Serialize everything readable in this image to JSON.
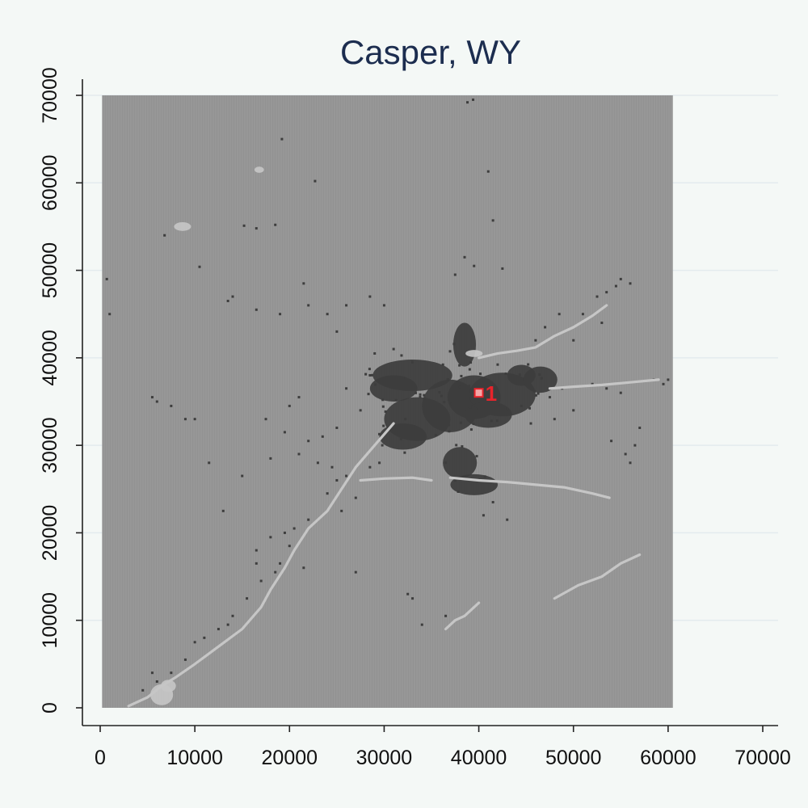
{
  "chart_data": {
    "type": "scatter",
    "title": "Casper, WY",
    "xlabel": "",
    "ylabel": "",
    "xlim": [
      0,
      72000
    ],
    "ylim": [
      0,
      70000
    ],
    "x_ticks": [
      0,
      10000,
      20000,
      30000,
      40000,
      50000,
      60000,
      70000
    ],
    "y_ticks": [
      0,
      10000,
      20000,
      30000,
      40000,
      50000,
      60000,
      70000
    ],
    "x_tick_labels": [
      "0",
      "10000",
      "20000",
      "30000",
      "40000",
      "50000",
      "60000",
      "70000"
    ],
    "y_tick_labels": [
      "0",
      "10000",
      "20000",
      "30000",
      "40000",
      "50000",
      "60000",
      "70000"
    ],
    "grid": "horizontal",
    "raster_extent": {
      "x": [
        200,
        60500
      ],
      "y": [
        0,
        70000
      ]
    },
    "colors": {
      "background": "#f4f8f6",
      "raster_fill": "#979797",
      "developed": "#3d3d3d",
      "water_roads": "#c6c6c6",
      "marker": "#e8242b",
      "marker_fill": "#f4a7a7",
      "title": "#1c2d4f",
      "grid": "#e3ebee"
    },
    "series": [
      {
        "class": "developed-core",
        "color": "#3d3d3d",
        "blobs": [
          [
            33000,
            38000,
            4200,
            1800
          ],
          [
            31000,
            36500,
            2500,
            1500
          ],
          [
            33500,
            33000,
            3500,
            2500
          ],
          [
            32000,
            31000,
            2500,
            1500
          ],
          [
            37000,
            34500,
            3000,
            3000
          ],
          [
            39500,
            35500,
            2800,
            2500
          ],
          [
            42500,
            35800,
            3500,
            2500
          ],
          [
            41000,
            33500,
            2500,
            1500
          ],
          [
            38500,
            41500,
            1200,
            2500
          ],
          [
            38000,
            28000,
            1800,
            1800
          ],
          [
            39500,
            25500,
            2500,
            1200
          ],
          [
            44500,
            38000,
            1500,
            1200
          ],
          [
            46500,
            37500,
            1800,
            1500
          ]
        ]
      },
      {
        "class": "developed-scatter",
        "color": "#3d3d3d",
        "points": [
          [
            38800,
            69200
          ],
          [
            39400,
            69500
          ],
          [
            41000,
            61300
          ],
          [
            19200,
            65000
          ],
          [
            22700,
            60200
          ],
          [
            15200,
            55100
          ],
          [
            16500,
            54800
          ],
          [
            18500,
            55200
          ],
          [
            41500,
            55700
          ],
          [
            6800,
            54000
          ],
          [
            10500,
            50400
          ],
          [
            700,
            49000
          ],
          [
            1000,
            45000
          ],
          [
            14000,
            47000
          ],
          [
            13500,
            46500
          ],
          [
            16500,
            45500
          ],
          [
            19000,
            45000
          ],
          [
            21500,
            48500
          ],
          [
            22000,
            46000
          ],
          [
            24000,
            45000
          ],
          [
            25000,
            43000
          ],
          [
            26000,
            46000
          ],
          [
            28500,
            47000
          ],
          [
            30000,
            46000
          ],
          [
            37500,
            49500
          ],
          [
            38500,
            51500
          ],
          [
            39500,
            50500
          ],
          [
            42500,
            50200
          ],
          [
            46000,
            42000
          ],
          [
            47000,
            43500
          ],
          [
            48500,
            45000
          ],
          [
            50000,
            42000
          ],
          [
            51000,
            45000
          ],
          [
            52500,
            47000
          ],
          [
            53500,
            47500
          ],
          [
            55000,
            49000
          ],
          [
            54500,
            48200
          ],
          [
            56000,
            48500
          ],
          [
            53000,
            44000
          ],
          [
            58500,
            37500
          ],
          [
            59500,
            37000
          ],
          [
            60000,
            37500
          ],
          [
            55000,
            36000
          ],
          [
            53500,
            36500
          ],
          [
            52000,
            37000
          ],
          [
            5500,
            35500
          ],
          [
            6000,
            35000
          ],
          [
            7500,
            34500
          ],
          [
            9000,
            33000
          ],
          [
            10000,
            33000
          ],
          [
            17500,
            33000
          ],
          [
            19500,
            31500
          ],
          [
            18000,
            28500
          ],
          [
            21000,
            29000
          ],
          [
            22000,
            30500
          ],
          [
            23000,
            28000
          ],
          [
            24500,
            27500
          ],
          [
            25000,
            26000
          ],
          [
            24000,
            24500
          ],
          [
            26000,
            26500
          ],
          [
            25500,
            22500
          ],
          [
            22000,
            21500
          ],
          [
            20500,
            20500
          ],
          [
            19500,
            20000
          ],
          [
            18000,
            19500
          ],
          [
            16500,
            18000
          ],
          [
            17000,
            14500
          ],
          [
            18500,
            15500
          ],
          [
            19000,
            16500
          ],
          [
            15500,
            12500
          ],
          [
            14000,
            10500
          ],
          [
            13500,
            9500
          ],
          [
            12500,
            9000
          ],
          [
            11000,
            8000
          ],
          [
            10000,
            7500
          ],
          [
            9000,
            5500
          ],
          [
            7500,
            4000
          ],
          [
            6000,
            3000
          ],
          [
            4500,
            2000
          ],
          [
            5500,
            4000
          ],
          [
            33000,
            12500
          ],
          [
            32500,
            13000
          ],
          [
            34000,
            9500
          ],
          [
            36500,
            10500
          ],
          [
            41500,
            23500
          ],
          [
            40500,
            22000
          ],
          [
            43000,
            21500
          ],
          [
            44500,
            34500
          ],
          [
            48000,
            33000
          ],
          [
            50000,
            34000
          ],
          [
            57000,
            32000
          ],
          [
            55500,
            29000
          ],
          [
            56500,
            30000
          ],
          [
            56000,
            28000
          ],
          [
            54000,
            30500
          ],
          [
            28500,
            27500
          ],
          [
            27000,
            24000
          ],
          [
            29500,
            28000
          ],
          [
            36500,
            28000
          ],
          [
            37500,
            26000
          ],
          [
            20000,
            34500
          ],
          [
            21000,
            35500
          ],
          [
            23500,
            31000
          ],
          [
            25000,
            32000
          ],
          [
            26000,
            36500
          ],
          [
            27500,
            34000
          ],
          [
            28500,
            38000
          ],
          [
            29000,
            40500
          ],
          [
            31000,
            41000
          ],
          [
            33000,
            39500
          ],
          [
            45500,
            32500
          ],
          [
            47500,
            35500
          ],
          [
            48800,
            36500
          ],
          [
            11500,
            28000
          ],
          [
            15000,
            26500
          ],
          [
            13000,
            22500
          ],
          [
            27000,
            15500
          ],
          [
            21500,
            16000
          ],
          [
            20000,
            18500
          ],
          [
            16500,
            16500
          ]
        ]
      },
      {
        "class": "water-roads",
        "color": "#c6c6c6",
        "polylines": [
          [
            [
              27500,
              26000
            ],
            [
              30000,
              26200
            ],
            [
              33000,
              26300
            ],
            [
              35000,
              26000
            ]
          ],
          [
            [
              37000,
              26300
            ],
            [
              40000,
              26000
            ],
            [
              43000,
              25800
            ],
            [
              46000,
              25500
            ],
            [
              49000,
              25200
            ],
            [
              52000,
              24500
            ],
            [
              53800,
              24000
            ]
          ],
          [
            [
              3000,
              200
            ],
            [
              5000,
              1200
            ],
            [
              6500,
              2500
            ],
            [
              8000,
              3500
            ],
            [
              10000,
              5000
            ],
            [
              12500,
              7000
            ],
            [
              15000,
              9000
            ],
            [
              17000,
              11500
            ],
            [
              18000,
              13500
            ],
            [
              19500,
              16000
            ],
            [
              20500,
              18000
            ],
            [
              22000,
              20500
            ],
            [
              24000,
              22500
            ],
            [
              25500,
              25000
            ],
            [
              27000,
              27500
            ],
            [
              29000,
              30000
            ],
            [
              31000,
              32500
            ]
          ],
          [
            [
              48000,
              12500
            ],
            [
              50500,
              14000
            ],
            [
              53000,
              15000
            ],
            [
              55000,
              16500
            ],
            [
              57000,
              17500
            ]
          ],
          [
            [
              36500,
              9000
            ],
            [
              37500,
              10000
            ],
            [
              38500,
              10500
            ],
            [
              40000,
              12000
            ]
          ],
          [
            [
              40000,
              40000
            ],
            [
              42000,
              40500
            ],
            [
              44000,
              40800
            ],
            [
              46000,
              41200
            ],
            [
              48000,
              42500
            ],
            [
              50000,
              43500
            ],
            [
              52000,
              44800
            ],
            [
              53500,
              46000
            ]
          ],
          [
            [
              47500,
              36500
            ],
            [
              50000,
              36700
            ],
            [
              53000,
              36900
            ],
            [
              56000,
              37200
            ],
            [
              59000,
              37500
            ]
          ]
        ],
        "blobs": [
          [
            8700,
            55000,
            900,
            500
          ],
          [
            16800,
            61500,
            500,
            350
          ],
          [
            6500,
            1500,
            1200,
            1200
          ],
          [
            7200,
            2500,
            800,
            700
          ],
          [
            39500,
            40500,
            900,
            400
          ]
        ]
      }
    ],
    "annotations": [
      {
        "x": 40000,
        "y": 36000,
        "label": "1",
        "color": "#e8242b"
      }
    ]
  }
}
